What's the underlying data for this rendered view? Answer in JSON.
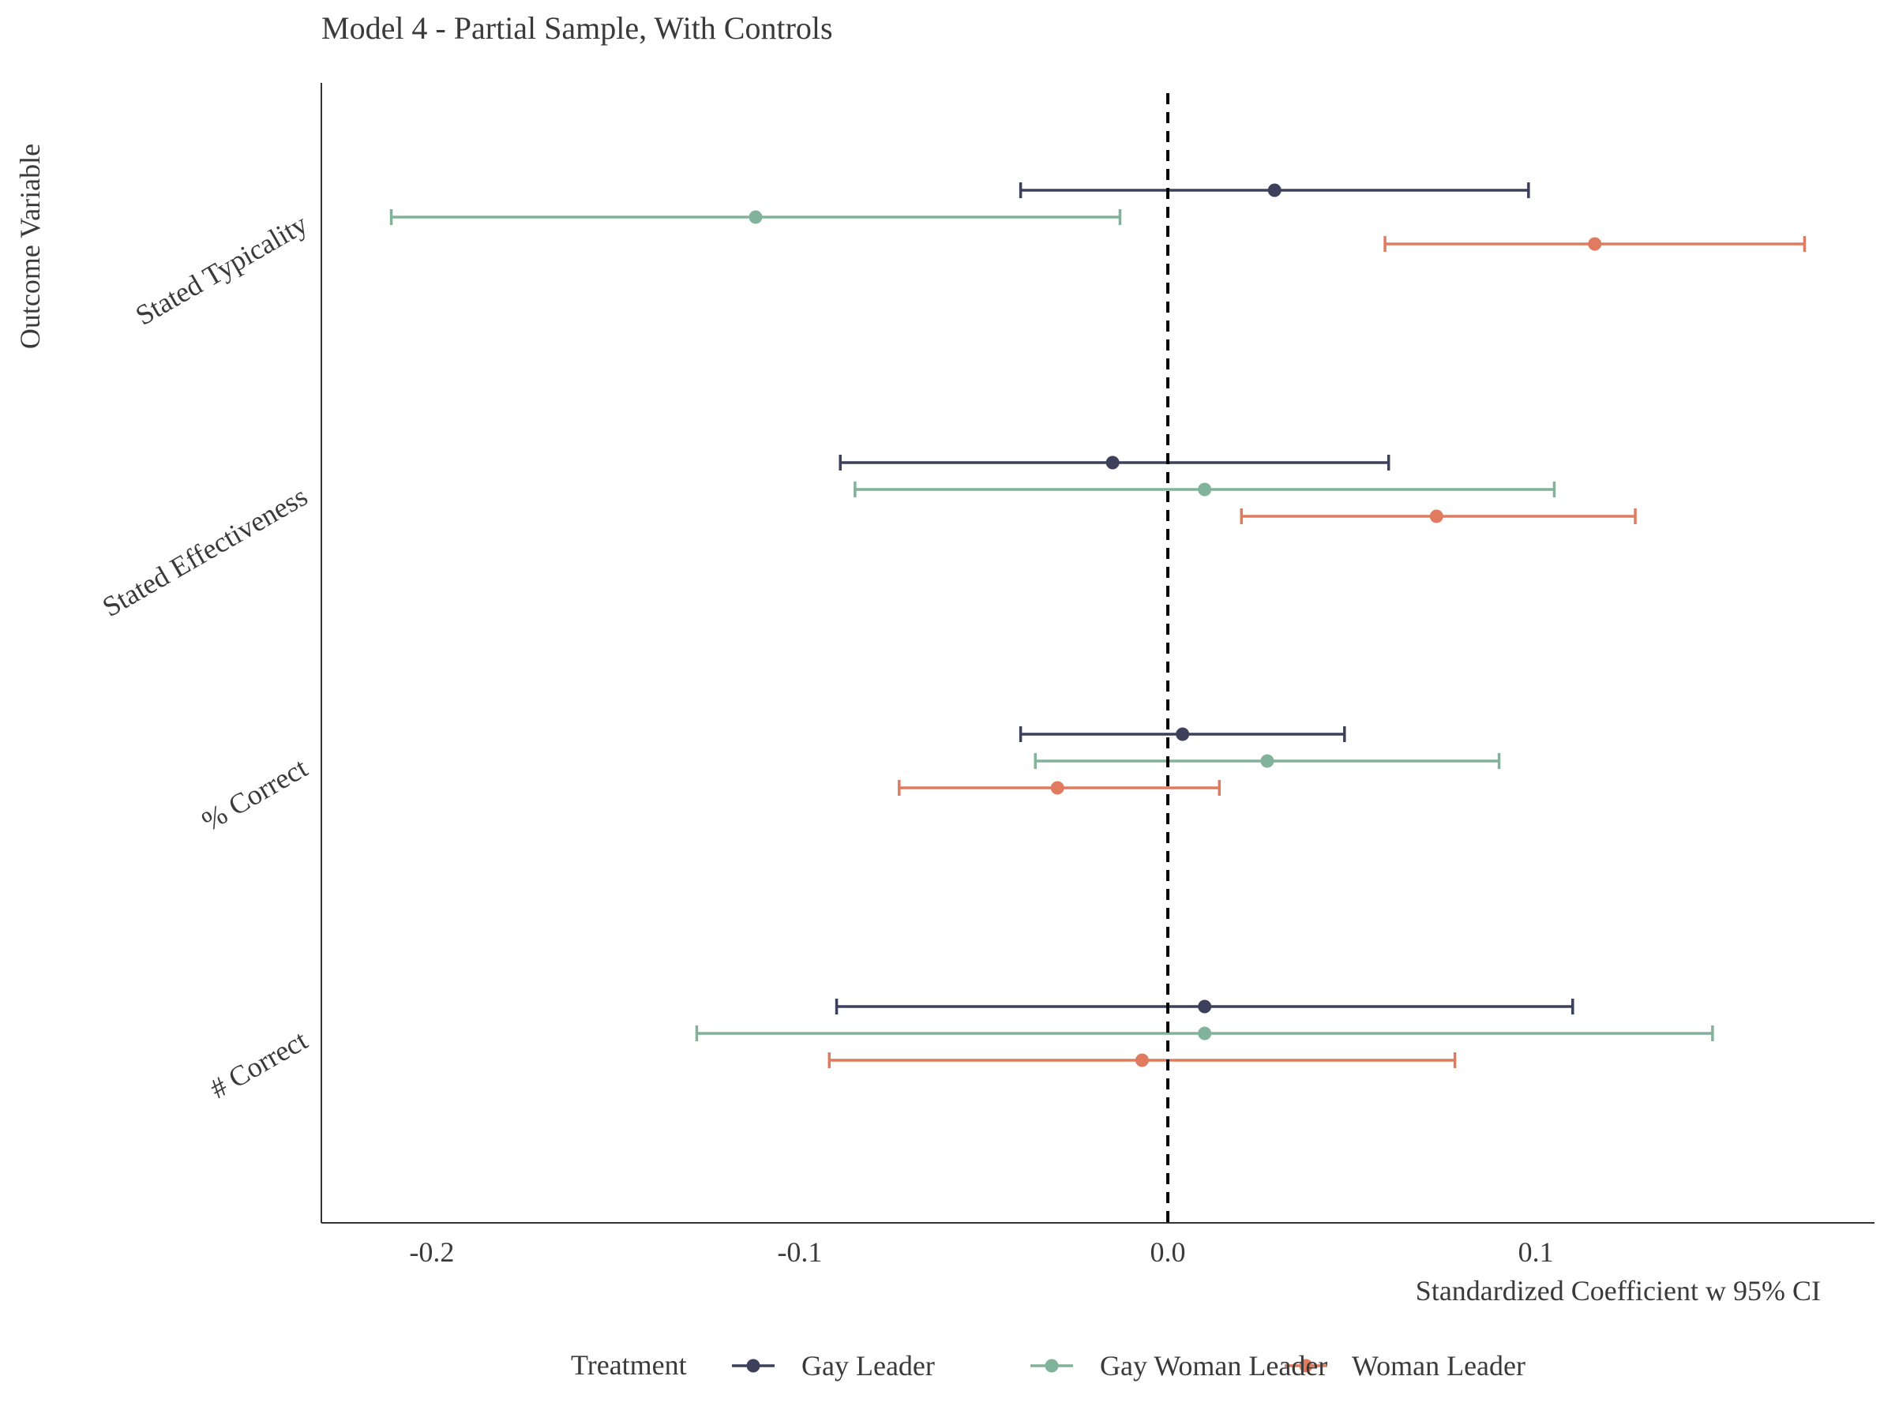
{
  "chart_data": {
    "type": "dot-whisker",
    "title": "Model 4 - Partial Sample, With Controls",
    "xlabel": "Standardized Coefficient w 95% CI",
    "ylabel": "Outcome Variable",
    "xlim": [
      -0.23,
      0.192
    ],
    "x_ticks": [
      -0.2,
      -0.1,
      0.0,
      0.1
    ],
    "x_tick_labels": [
      "-0.2",
      "-0.1",
      "0.0",
      "0.1"
    ],
    "reference_line": 0.0,
    "categories": [
      "Stated Typicality",
      "Stated Effectiveness",
      "% Correct",
      "# Correct"
    ],
    "legend": {
      "title": "Treatment",
      "position": "bottom"
    },
    "series": [
      {
        "name": "Woman Leader",
        "color": "#E07B5F",
        "points": [
          {
            "category": "Stated Typicality",
            "estimate": 0.116,
            "low": 0.059,
            "high": 0.173
          },
          {
            "category": "Stated Effectiveness",
            "estimate": 0.073,
            "low": 0.02,
            "high": 0.127
          },
          {
            "category": "% Correct",
            "estimate": -0.03,
            "low": -0.073,
            "high": 0.014
          },
          {
            "category": "# Correct",
            "estimate": -0.007,
            "low": -0.092,
            "high": 0.078
          }
        ]
      },
      {
        "name": "Gay Leader",
        "color": "#3D405B",
        "points": [
          {
            "category": "Stated Typicality",
            "estimate": 0.029,
            "low": -0.04,
            "high": 0.098
          },
          {
            "category": "Stated Effectiveness",
            "estimate": -0.015,
            "low": -0.089,
            "high": 0.06
          },
          {
            "category": "% Correct",
            "estimate": 0.004,
            "low": -0.04,
            "high": 0.048
          },
          {
            "category": "# Correct",
            "estimate": 0.01,
            "low": -0.09,
            "high": 0.11
          }
        ]
      },
      {
        "name": "Gay Woman Leader",
        "color": "#81B29A",
        "points": [
          {
            "category": "Stated Typicality",
            "estimate": -0.112,
            "low": -0.211,
            "high": -0.013
          },
          {
            "category": "Stated Effectiveness",
            "estimate": 0.01,
            "low": -0.085,
            "high": 0.105
          },
          {
            "category": "% Correct",
            "estimate": 0.027,
            "low": -0.036,
            "high": 0.09
          },
          {
            "category": "# Correct",
            "estimate": 0.01,
            "low": -0.128,
            "high": 0.148
          }
        ]
      }
    ]
  }
}
